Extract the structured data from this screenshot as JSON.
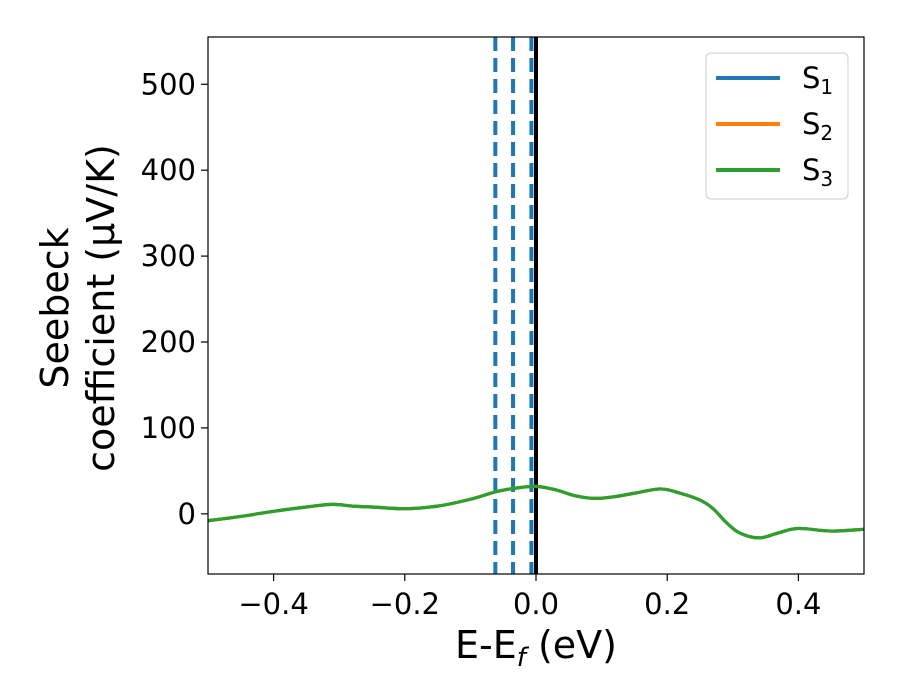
{
  "chart_data": {
    "type": "line",
    "xlabel": "E-E",
    "xlabel_sub": "f",
    "xlabel_unit": " (eV)",
    "ylabel_line1": "Seebeck",
    "ylabel_line2": "coefficient  (μV/K)",
    "xlim": [
      -0.5,
      0.5
    ],
    "ylim": [
      -70,
      555
    ],
    "xticks": [
      -0.4,
      -0.2,
      0.0,
      0.2,
      0.4
    ],
    "xtick_labels": [
      "−0.4",
      "−0.2",
      "0.0",
      "0.2",
      "0.4"
    ],
    "yticks": [
      0,
      100,
      200,
      300,
      400,
      500
    ],
    "ytick_labels": [
      "0",
      "100",
      "200",
      "300",
      "400",
      "500"
    ],
    "grid": false,
    "legend_position": "top-right",
    "series": [
      {
        "name": "S",
        "sub": "1",
        "color": "#1f77b4",
        "x": [
          -0.5,
          -0.45,
          -0.4,
          -0.35,
          -0.31,
          -0.28,
          -0.25,
          -0.2,
          -0.15,
          -0.1,
          -0.06,
          -0.03,
          0.0,
          0.03,
          0.06,
          0.09,
          0.12,
          0.15,
          0.19,
          0.22,
          0.25,
          0.27,
          0.29,
          0.31,
          0.34,
          0.37,
          0.4,
          0.45,
          0.5
        ],
        "y": [
          -8,
          -3,
          3,
          8,
          11,
          9,
          8,
          6,
          9,
          17,
          26,
          30,
          32,
          28,
          21,
          18,
          20,
          24,
          29,
          24,
          16,
          6,
          -10,
          -22,
          -28,
          -22,
          -17,
          -20,
          -18
        ]
      },
      {
        "name": "S",
        "sub": "2",
        "color": "#ff7f0e",
        "x": [
          -0.5,
          -0.45,
          -0.4,
          -0.35,
          -0.31,
          -0.28,
          -0.25,
          -0.2,
          -0.15,
          -0.1,
          -0.06,
          -0.03,
          0.0,
          0.03,
          0.06,
          0.09,
          0.12,
          0.15,
          0.19,
          0.22,
          0.25,
          0.27,
          0.29,
          0.31,
          0.34,
          0.37,
          0.4,
          0.45,
          0.5
        ],
        "y": [
          -8,
          -3,
          3,
          8,
          11,
          9,
          8,
          6,
          9,
          17,
          26,
          30,
          32,
          28,
          21,
          18,
          20,
          24,
          29,
          24,
          16,
          6,
          -10,
          -22,
          -28,
          -22,
          -17,
          -20,
          -18
        ]
      },
      {
        "name": "S",
        "sub": "3",
        "color": "#2ca02c",
        "x": [
          -0.5,
          -0.45,
          -0.4,
          -0.35,
          -0.31,
          -0.28,
          -0.25,
          -0.2,
          -0.15,
          -0.1,
          -0.06,
          -0.03,
          0.0,
          0.03,
          0.06,
          0.09,
          0.12,
          0.15,
          0.19,
          0.22,
          0.25,
          0.27,
          0.29,
          0.31,
          0.34,
          0.37,
          0.4,
          0.45,
          0.5
        ],
        "y": [
          -8,
          -3,
          3,
          8,
          11,
          9,
          8,
          6,
          9,
          17,
          26,
          30,
          32,
          28,
          21,
          18,
          20,
          24,
          29,
          24,
          16,
          6,
          -10,
          -22,
          -28,
          -22,
          -17,
          -20,
          -18
        ]
      }
    ],
    "vlines": [
      {
        "x": -0.062,
        "style": "dashed",
        "color": "#1f77b4"
      },
      {
        "x": -0.035,
        "style": "dashed",
        "color": "#1f77b4"
      },
      {
        "x": -0.007,
        "style": "dashed",
        "color": "#1f77b4"
      },
      {
        "x": 0.0,
        "style": "solid",
        "color": "#000000"
      }
    ]
  }
}
